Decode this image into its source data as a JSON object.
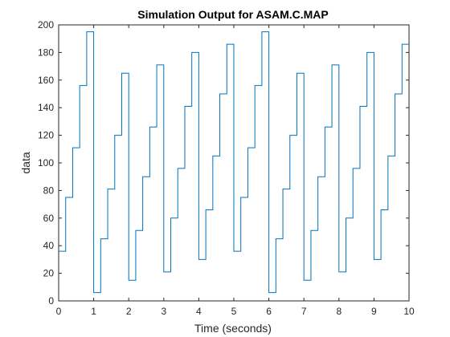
{
  "figure": {
    "background": "#ffffff"
  },
  "chart_data": {
    "type": "line",
    "title": "Simulation Output for ASAM.C.MAP",
    "xlabel": "Time (seconds)",
    "ylabel": "data",
    "xlim": [
      0,
      10
    ],
    "ylim": [
      0,
      200
    ],
    "xticks": [
      0,
      1,
      2,
      3,
      4,
      5,
      6,
      7,
      8,
      9,
      10
    ],
    "yticks": [
      0,
      20,
      40,
      60,
      80,
      100,
      120,
      140,
      160,
      180,
      200
    ],
    "grid": false,
    "step": "stairs",
    "line_color": "#0072bd",
    "axis_color": "#262626",
    "series": [
      {
        "x": [
          0,
          0.2,
          0.4,
          0.6,
          0.8,
          1.0,
          1.2,
          1.4,
          1.6,
          1.8,
          2.0,
          2.2,
          2.4,
          2.6,
          2.8,
          3.0,
          3.2,
          3.4,
          3.6,
          3.8,
          4.0,
          4.2,
          4.4,
          4.6,
          4.8,
          5.0,
          5.2,
          5.4,
          5.6,
          5.8,
          6.0,
          6.2,
          6.4,
          6.6,
          6.8,
          7.0,
          7.2,
          7.4,
          7.6,
          7.8,
          8.0,
          8.2,
          8.4,
          8.6,
          8.8,
          9.0,
          9.2,
          9.4,
          9.6,
          9.8,
          10.0
        ],
        "values": [
          36,
          75,
          111,
          156,
          195,
          6,
          45,
          81,
          120,
          165,
          15,
          51,
          90,
          126,
          171,
          21,
          60,
          96,
          141,
          180,
          30,
          66,
          105,
          150,
          186,
          36,
          75,
          111,
          156,
          195,
          6,
          45,
          81,
          120,
          165,
          15,
          51,
          90,
          126,
          171,
          21,
          60,
          96,
          141,
          180,
          30,
          66,
          105,
          150,
          186,
          186
        ]
      }
    ]
  }
}
